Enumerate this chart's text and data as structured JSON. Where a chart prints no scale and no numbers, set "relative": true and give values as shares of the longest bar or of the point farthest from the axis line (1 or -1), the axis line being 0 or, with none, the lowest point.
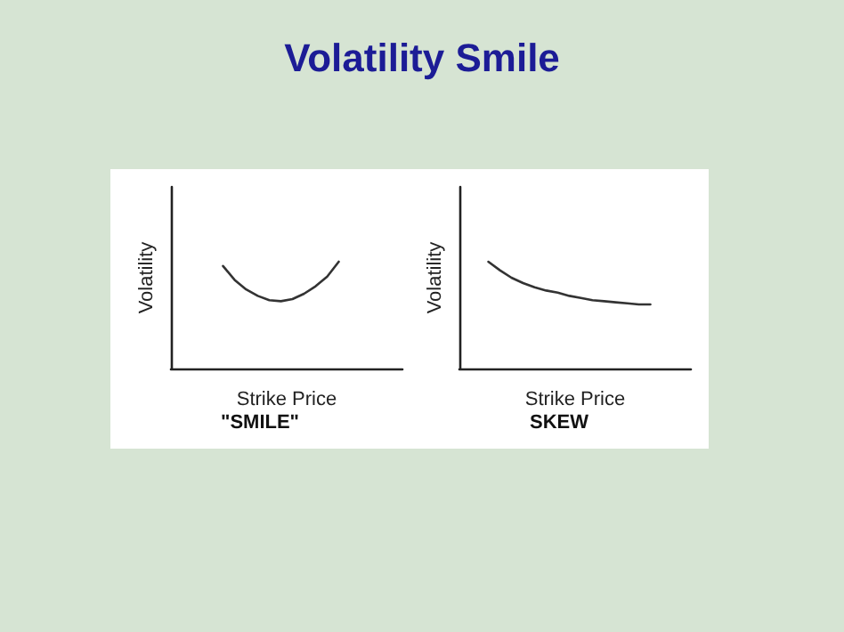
{
  "chart_data": [
    {
      "type": "line",
      "title": "\"SMILE\"",
      "xlabel": "Strike Price",
      "ylabel": "Volatility",
      "annotations": [
        "Volatility Smile"
      ],
      "relative": true,
      "categories": [
        null,
        null,
        null,
        null,
        null,
        null,
        null,
        null,
        null,
        null,
        null,
        null,
        null,
        null,
        null,
        null,
        null,
        null,
        null,
        null
      ],
      "series": [
        {
          "color": "#333333",
          "values": [
            null,
            null,
            null,
            null,
            0.96,
            0.83,
            0.74,
            0.68,
            0.64,
            0.63,
            0.65,
            0.7,
            0.77,
            0.86,
            1,
            null,
            null,
            null,
            null,
            null
          ]
        }
      ],
      "line_style": "solid",
      "grid": false,
      "tick_labels": false
    },
    {
      "type": "line",
      "title": "SKEW",
      "xlabel": "Strike Price",
      "ylabel": "Volatility",
      "relative": true,
      "categories": [
        null,
        null,
        null,
        null,
        null,
        null,
        null,
        null,
        null,
        null,
        null,
        null,
        null,
        null,
        null,
        null,
        null,
        null,
        null,
        null
      ],
      "series": [
        {
          "color": "#333333",
          "values": [
            null,
            null,
            1,
            0.92,
            0.85,
            0.8,
            0.76,
            0.73,
            0.71,
            0.68,
            0.66,
            0.64,
            0.63,
            0.62,
            0.61,
            0.6,
            0.6,
            null,
            null,
            null
          ]
        }
      ],
      "line_style": "solid",
      "grid": false,
      "tick_labels": false
    }
  ]
}
